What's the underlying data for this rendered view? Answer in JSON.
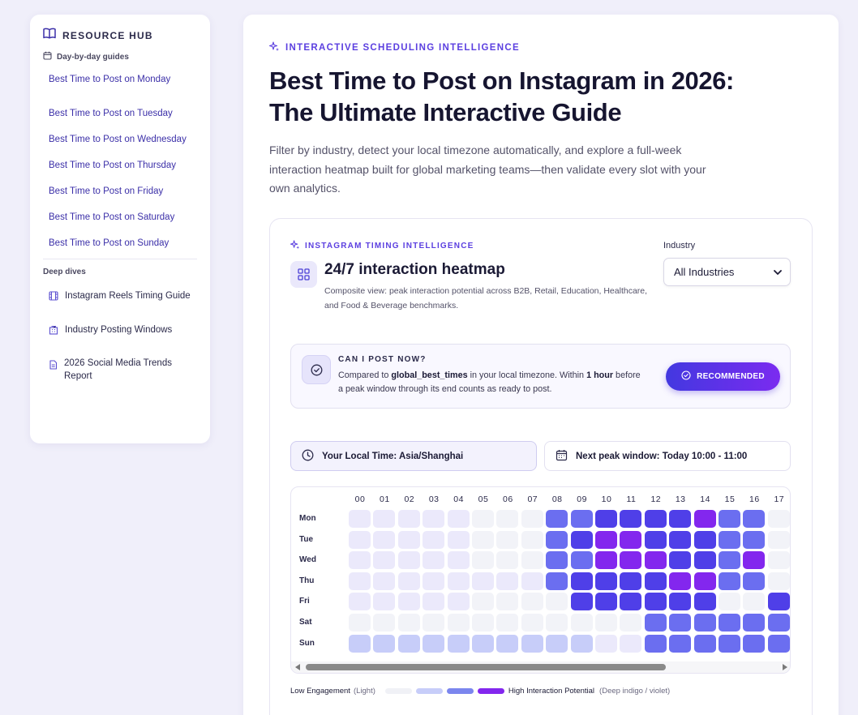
{
  "sidebar": {
    "title": "RESOURCE HUB",
    "section_daily": "Day-by-day guides",
    "daily_links": [
      "Best Time to Post on Monday",
      "Best Time to Post on Tuesday",
      "Best Time to Post on Wednesday",
      "Best Time to Post on Thursday",
      "Best Time to Post on Friday",
      "Best Time to Post on Saturday",
      "Best Time to Post on Sunday"
    ],
    "section_deep": "Deep dives",
    "deep_links": [
      {
        "label": "Instagram Reels Timing Guide",
        "icon": "film-icon"
      },
      {
        "label": "Industry Posting Windows",
        "icon": "building-icon"
      },
      {
        "label": "2026 Social Media Trends Report",
        "icon": "document-icon"
      }
    ]
  },
  "hero": {
    "eyebrow": "INTERACTIVE SCHEDULING INTELLIGENCE",
    "title": "Best Time to Post on Instagram in 2026: The Ultimate Interactive Guide",
    "lede": "Filter by industry, detect your local timezone automatically, and explore a full-week interaction heatmap built for global marketing teams—then validate every slot with your own analytics."
  },
  "card": {
    "eyebrow": "INSTAGRAM TIMING INTELLIGENCE",
    "title": "24/7 interaction heatmap",
    "desc": "Composite view: peak interaction potential across B2B, Retail, Education, Healthcare, and Food & Beverage benchmarks.",
    "industry_label": "Industry",
    "industry_value": "All Industries"
  },
  "post_now": {
    "title": "CAN I POST NOW?",
    "text_1": "Compared to ",
    "text_bold_1": "global_best_times",
    "text_2": " in your local timezone. Within ",
    "text_bold_2": "1 hour",
    "text_3": " before a peak window through its end counts as ready to post.",
    "button": "RECOMMENDED"
  },
  "local_time": "Your Local Time: Asia/Shanghai",
  "next_peak": "Next peak window: Today 10:00 - 11:00",
  "heatmap": {
    "hours": [
      "00",
      "01",
      "02",
      "03",
      "04",
      "05",
      "06",
      "07",
      "08",
      "09",
      "10",
      "11",
      "12",
      "13",
      "14",
      "15",
      "16",
      "17"
    ],
    "days": [
      "Mon",
      "Tue",
      "Wed",
      "Thu",
      "Fri",
      "Sat",
      "Sun"
    ],
    "levels": [
      [
        1,
        1,
        1,
        1,
        1,
        0,
        0,
        0,
        3,
        3,
        4,
        4,
        4,
        4,
        5,
        3,
        3,
        0
      ],
      [
        1,
        1,
        1,
        1,
        1,
        0,
        0,
        0,
        3,
        4,
        5,
        5,
        4,
        4,
        4,
        3,
        3,
        0
      ],
      [
        1,
        1,
        1,
        1,
        1,
        0,
        0,
        0,
        3,
        3,
        5,
        5,
        5,
        4,
        4,
        3,
        5,
        0
      ],
      [
        1,
        1,
        1,
        1,
        1,
        1,
        1,
        1,
        3,
        4,
        4,
        4,
        4,
        5,
        5,
        3,
        3,
        0
      ],
      [
        1,
        1,
        1,
        1,
        1,
        0,
        0,
        0,
        0,
        4,
        4,
        4,
        4,
        4,
        4,
        0,
        0,
        4
      ],
      [
        0,
        0,
        0,
        0,
        0,
        0,
        0,
        0,
        0,
        0,
        0,
        0,
        3,
        3,
        3,
        3,
        3,
        3
      ],
      [
        2,
        2,
        2,
        2,
        2,
        2,
        2,
        2,
        2,
        2,
        1,
        1,
        3,
        3,
        3,
        3,
        3,
        3
      ]
    ],
    "palette": [
      "#f2f3f8",
      "#ebe9fb",
      "#c7cdf9",
      "#6b6ef0",
      "#4f3fe8",
      "#8327ee"
    ]
  },
  "legend": {
    "low": "Low Engagement",
    "low_note": "(Light)",
    "high": "High Interaction Potential",
    "high_note": "(Deep indigo / violet)",
    "swatches": [
      "#f0f1f6",
      "#c7cdf9",
      "#7b86ee",
      "#8327ee"
    ]
  }
}
